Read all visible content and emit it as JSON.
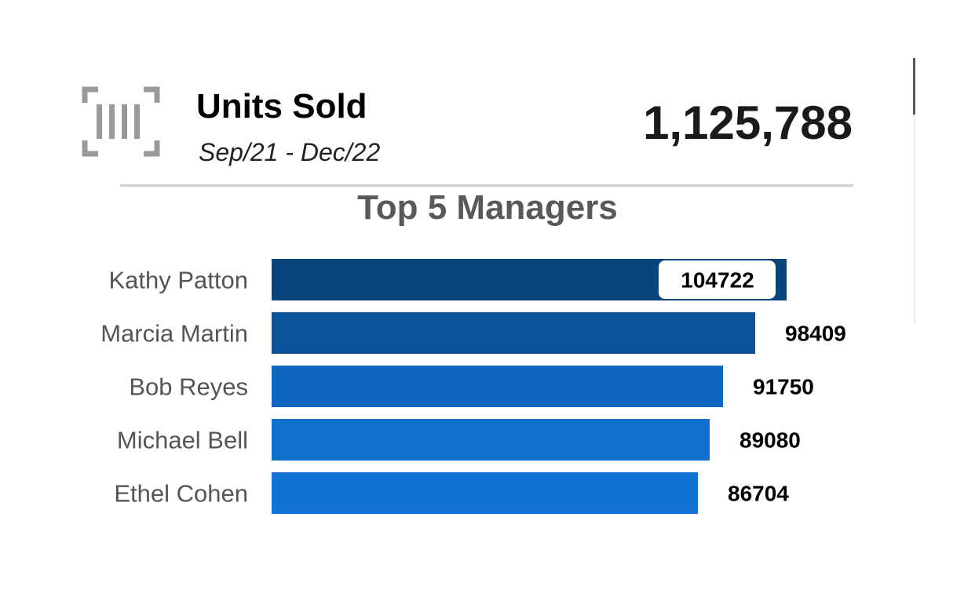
{
  "kpi": {
    "icon": "barcode-scan-icon",
    "title": "Units Sold",
    "period": "Sep/21 - Dec/22",
    "value": "1,125,788"
  },
  "chart_data": {
    "type": "bar",
    "orientation": "horizontal",
    "title": "Top 5 Managers",
    "categories": [
      "Kathy Patton",
      "Marcia Martin",
      "Bob Reyes",
      "Michael Bell",
      "Ethel Cohen"
    ],
    "values": [
      104722,
      98409,
      91750,
      89080,
      86704
    ],
    "value_labels": [
      "104722",
      "98409",
      "91750",
      "89080",
      "86704"
    ],
    "colors": [
      "#0a447c",
      "#0b5499",
      "#0e68c0",
      "#1070cc",
      "#1273d6"
    ],
    "highlight_label_background": "#ffffff",
    "grid": false,
    "legend": "none",
    "xlim": [
      0,
      104722
    ]
  }
}
